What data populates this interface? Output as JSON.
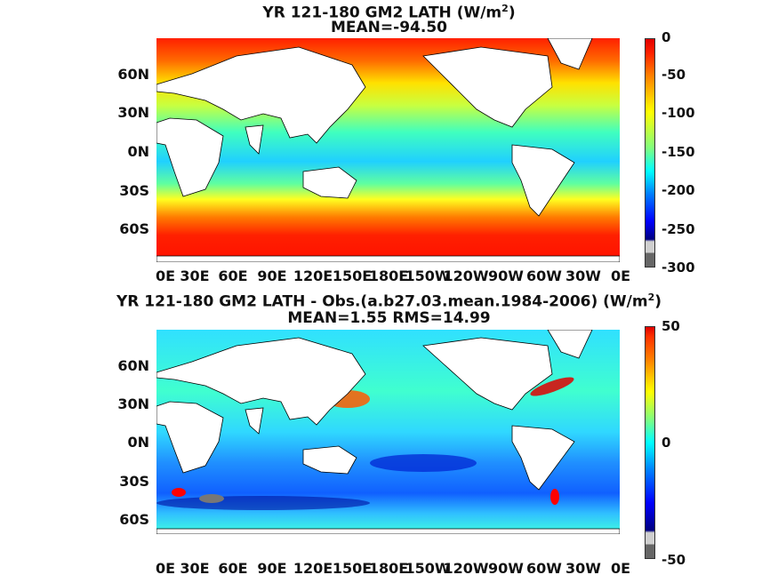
{
  "panel_top": {
    "title_line1": "YR 121-180 GM2  LATH (W/m",
    "title_sup": "2",
    "title_close": ")",
    "title_line2": "MEAN=-94.50",
    "y_ticks": [
      "60N",
      "30N",
      "0N",
      "30S",
      "60S"
    ],
    "x_ticks": [
      "0E",
      "30E",
      "60E",
      "90E",
      "120E",
      "150E",
      "180E",
      "150W",
      "120W",
      "90W",
      "60W",
      "30W",
      "0E"
    ],
    "colorbar_ticks": [
      "0",
      "-50",
      "-100",
      "-150",
      "-200",
      "-250",
      "-300"
    ],
    "colorbar_range": [
      -300,
      0
    ]
  },
  "panel_bottom": {
    "title_line1": "YR 121-180 GM2 LATH - Obs.(a.b27.03.mean.1984-2006) (W/m",
    "title_sup": "2",
    "title_close": ")",
    "title_line2": "MEAN=1.55 RMS=14.99",
    "y_ticks": [
      "60N",
      "30N",
      "0N",
      "30S",
      "60S"
    ],
    "x_ticks": [
      "0E",
      "30E",
      "60E",
      "90E",
      "120E",
      "150E",
      "180E",
      "150W",
      "120W",
      "90W",
      "60W",
      "30W",
      "0E"
    ],
    "colorbar_ticks": [
      "50",
      "0",
      "-50"
    ],
    "colorbar_range": [
      -50,
      50
    ]
  },
  "colors": {
    "jet_stops": [
      "#00007f",
      "#0000ff",
      "#007fff",
      "#00ffff",
      "#7fff7f",
      "#ffff00",
      "#ff7f00",
      "#ff0000",
      "#7f0000"
    ],
    "land": "#ffffff",
    "missing": "#777777"
  }
}
